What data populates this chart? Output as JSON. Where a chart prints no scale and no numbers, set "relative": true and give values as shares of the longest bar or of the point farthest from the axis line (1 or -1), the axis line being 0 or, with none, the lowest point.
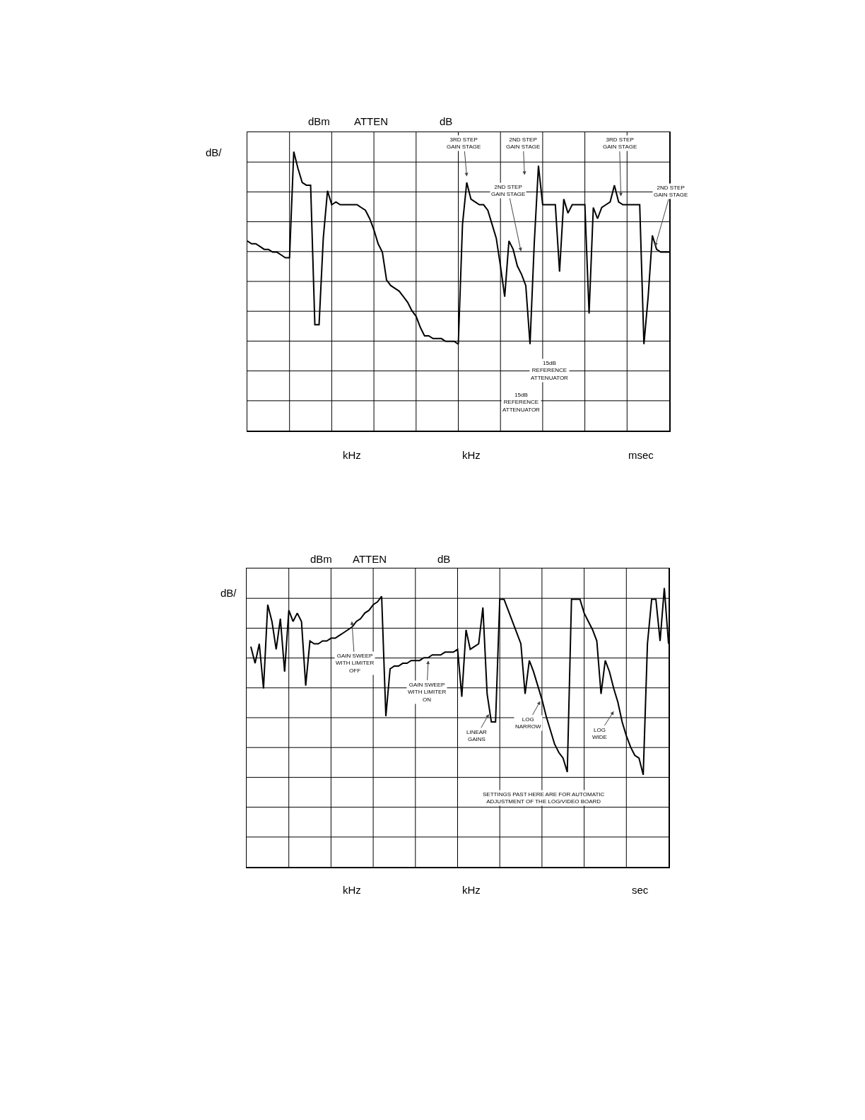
{
  "chart_data": [
    {
      "type": "line",
      "relative": true,
      "grid": true,
      "color": "#000000",
      "categories": [
        null,
        null,
        null,
        null,
        null,
        null,
        null,
        null,
        null,
        null,
        null,
        null,
        null,
        null,
        null,
        null,
        null,
        null,
        null,
        null,
        null,
        null,
        null,
        null,
        null,
        null,
        null,
        null,
        null,
        null,
        null,
        null,
        null,
        null,
        null,
        null,
        null,
        null,
        null,
        null,
        null,
        null,
        null,
        null,
        null,
        null,
        null,
        null,
        null,
        null,
        null,
        null,
        null,
        null,
        null,
        null,
        null,
        null,
        null,
        null,
        null,
        null,
        null,
        null,
        null,
        null,
        null,
        null,
        null,
        null,
        null,
        null,
        null,
        null,
        null,
        null,
        null,
        null,
        null,
        null,
        null,
        null,
        null,
        null,
        null,
        null,
        null,
        null,
        null,
        null,
        null,
        null,
        null,
        null,
        null,
        null,
        null,
        null,
        null,
        null,
        null
      ],
      "values": [
        0.68,
        0.67,
        0.67,
        0.66,
        0.65,
        0.65,
        0.64,
        0.64,
        0.63,
        0.62,
        0.62,
        1,
        0.94,
        0.89,
        0.88,
        0.88,
        0.38,
        0.38,
        0.69,
        0.86,
        0.81,
        0.82,
        0.81,
        0.81,
        0.81,
        0.81,
        0.81,
        0.8,
        0.79,
        0.76,
        0.72,
        0.67,
        0.64,
        0.54,
        0.52,
        0.51,
        0.5,
        0.48,
        0.46,
        0.43,
        0.41,
        0.37,
        0.34,
        0.34,
        0.33,
        0.33,
        0.33,
        0.32,
        0.32,
        0.32,
        0.31,
        0.74,
        0.89,
        0.83,
        0.82,
        0.81,
        0.81,
        0.79,
        0.74,
        0.69,
        0.59,
        0.48,
        0.68,
        0.65,
        0.59,
        0.56,
        0.52,
        0.31,
        0.67,
        0.95,
        0.81,
        0.81,
        0.81,
        0.81,
        0.57,
        0.83,
        0.78,
        0.81,
        0.81,
        0.81,
        0.81,
        0.42,
        0.8,
        0.76,
        0.8,
        0.81,
        0.82,
        0.88,
        0.82,
        0.81,
        0.81,
        0.81,
        0.81,
        0.81,
        0.31,
        0.48,
        0.7,
        0.65,
        0.64,
        0.64,
        0.64
      ],
      "annotations": [
        "dBm",
        "ATTEN",
        "dB",
        "dB/",
        "3RD STEP\nGAIN STAGE",
        "2ND STEP\nGAIN STAGE",
        "2ND STEP\nGAIN STAGE",
        "3RD STEP\nGAIN STAGE",
        "2ND STEP\nGAIN STAGE",
        "15dB\nREFERENCE\nATTENUATOR",
        "15dB\nREFERENCE\nATTENUATOR",
        "kHz",
        "kHz",
        "msec"
      ]
    },
    {
      "type": "line",
      "relative": true,
      "grid": true,
      "color": "#000000",
      "categories": [
        null,
        null,
        null,
        null,
        null,
        null,
        null,
        null,
        null,
        null,
        null,
        null,
        null,
        null,
        null,
        null,
        null,
        null,
        null,
        null,
        null,
        null,
        null,
        null,
        null,
        null,
        null,
        null,
        null,
        null,
        null,
        null,
        null,
        null,
        null,
        null,
        null,
        null,
        null,
        null,
        null,
        null,
        null,
        null,
        null,
        null,
        null,
        null,
        null,
        null,
        null,
        null,
        null,
        null,
        null,
        null,
        null,
        null,
        null,
        null,
        null,
        null,
        null,
        null,
        null,
        null,
        null,
        null,
        null,
        null,
        null,
        null,
        null,
        null,
        null,
        null,
        null,
        null,
        null,
        null,
        null,
        null,
        null,
        null,
        null,
        null,
        null,
        null,
        null,
        null,
        null,
        null,
        null,
        null,
        null,
        null,
        null,
        null,
        null,
        null,
        null
      ],
      "values": [
        null,
        0.79,
        0.73,
        0.8,
        0.64,
        0.94,
        0.88,
        0.78,
        0.89,
        0.7,
        0.92,
        0.88,
        0.91,
        0.88,
        0.65,
        0.81,
        0.8,
        0.8,
        0.81,
        0.81,
        0.82,
        0.82,
        0.83,
        0.84,
        0.85,
        0.86,
        0.88,
        0.89,
        0.91,
        0.92,
        0.94,
        0.95,
        0.97,
        0.54,
        0.71,
        0.72,
        0.72,
        0.73,
        0.73,
        0.74,
        0.74,
        0.74,
        0.75,
        0.75,
        0.76,
        0.76,
        0.76,
        0.77,
        0.77,
        0.77,
        0.78,
        0.61,
        0.85,
        0.78,
        0.79,
        0.8,
        0.93,
        0.62,
        0.52,
        0.52,
        0.96,
        0.96,
        0.92,
        0.88,
        0.84,
        0.8,
        0.62,
        0.74,
        0.7,
        0.65,
        0.6,
        0.54,
        0.49,
        0.44,
        0.41,
        0.39,
        0.34,
        0.96,
        0.96,
        0.96,
        0.91,
        0.88,
        0.85,
        0.81,
        0.62,
        0.74,
        0.7,
        0.64,
        0.59,
        0.52,
        0.47,
        0.43,
        0.4,
        0.39,
        0.33,
        0.8,
        0.96,
        0.96,
        0.81,
        1,
        0.8
      ],
      "annotations": [
        "dBm",
        "ATTEN",
        "dB",
        "dB/",
        "GAIN SWEEP\nWITH LIMITER\nOFF",
        "GAIN SWEEP\nWITH LIMITER\nON",
        "LINEAR\nGAINS",
        "LOG\nNARROW",
        "LOG\nWIDE",
        "SETTINGS PAST HERE ARE FOR AUTOMATIC\nADJUSTMENT OF THE LOG/VIDEO BOARD",
        "kHz",
        "kHz",
        "sec"
      ]
    }
  ]
}
